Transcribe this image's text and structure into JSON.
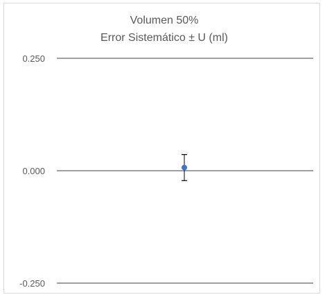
{
  "chart_data": {
    "type": "scatter",
    "title": "Volumen 50%",
    "subtitle": "Error Sistemático ± U (ml)",
    "xlabel": "",
    "ylabel": "",
    "ylim": [
      -0.25,
      0.25
    ],
    "y_ticks": [
      0.25,
      0.0,
      -0.25
    ],
    "y_tick_labels": [
      "0.250",
      "0.000",
      "-0.250"
    ],
    "grid": true,
    "legend": "none",
    "point_color": "#4472c4",
    "series": [
      {
        "points": [
          {
            "x": 1,
            "y": 0.007,
            "error_plus": 0.029,
            "error_minus": 0.029
          }
        ]
      }
    ]
  }
}
